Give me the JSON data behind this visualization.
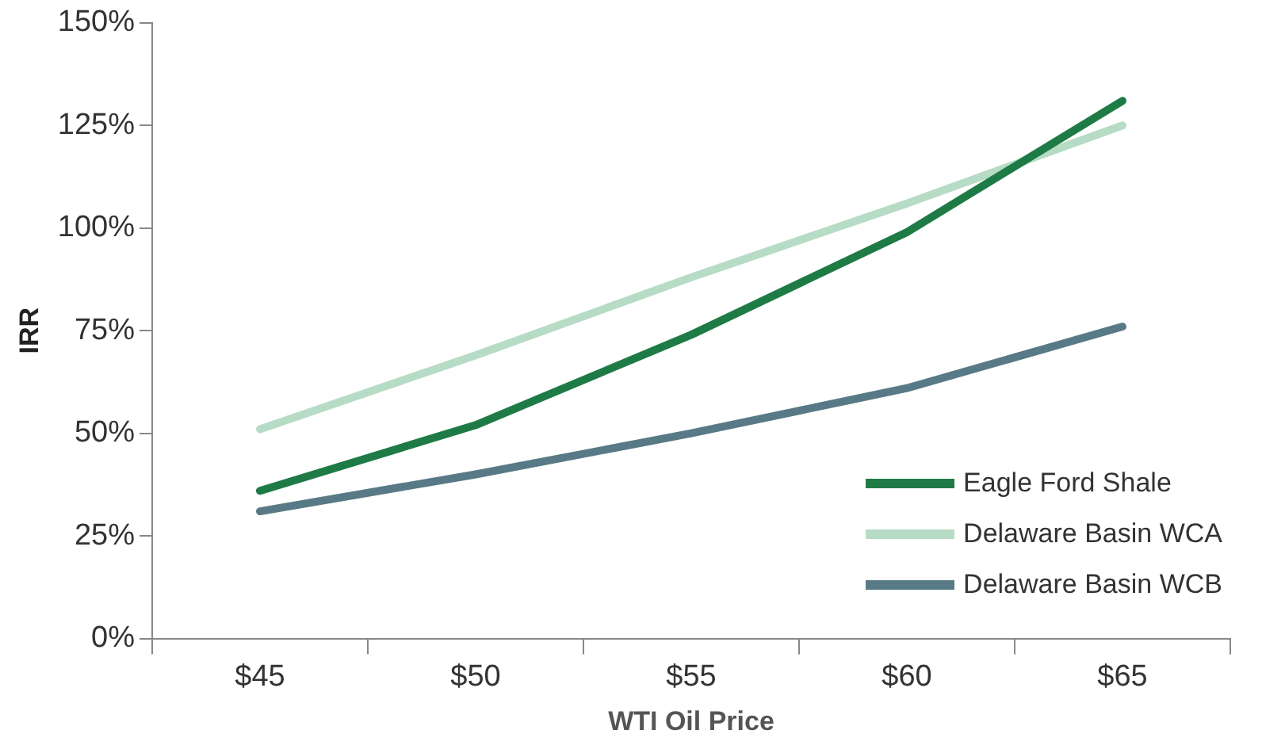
{
  "chart_data": {
    "type": "line",
    "xlabel": "WTI Oil Price",
    "ylabel": "IRR",
    "categories": [
      "$45",
      "$50",
      "$55",
      "$60",
      "$65"
    ],
    "series": [
      {
        "name": "Eagle Ford Shale",
        "color": "#1e7b45",
        "values": [
          36,
          52,
          74,
          99,
          131
        ]
      },
      {
        "name": "Delaware Basin WCA",
        "color": "#b7dcc5",
        "values": [
          51,
          69,
          88,
          106,
          125
        ]
      },
      {
        "name": "Delaware Basin WCB",
        "color": "#587a86",
        "values": [
          31,
          40,
          50,
          61,
          76
        ]
      }
    ],
    "ylim": [
      0,
      150
    ],
    "yticks": [
      {
        "value": 0,
        "label": "0%"
      },
      {
        "value": 25,
        "label": "25%"
      },
      {
        "value": 50,
        "label": "50%"
      },
      {
        "value": 75,
        "label": "75%"
      },
      {
        "value": 100,
        "label": "100%"
      },
      {
        "value": 125,
        "label": "125%"
      },
      {
        "value": 150,
        "label": "150%"
      }
    ],
    "grid": false,
    "legend": "bottom right",
    "marker": "none",
    "line_style": "solid"
  }
}
